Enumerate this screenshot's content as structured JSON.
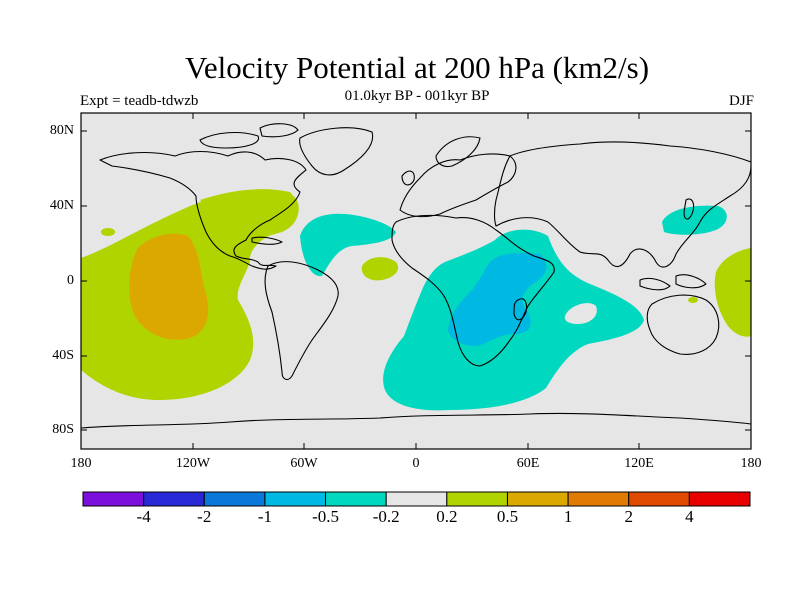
{
  "title": "Velocity Potential at 200 hPa (km2/s)",
  "subtitle": "01.0kyr BP - 001kyr BP",
  "experiment": "Expt = teadb-tdwzb",
  "season": "DJF",
  "map": {
    "projection": "cylindrical equidistant",
    "lon_range": [
      -180,
      180
    ],
    "lat_range": [
      -90,
      90
    ],
    "lat_ticks": [
      "80N",
      "40N",
      "0",
      "40S",
      "80S"
    ],
    "lon_ticks": [
      "180",
      "120W",
      "60W",
      "0",
      "60E",
      "120E",
      "180"
    ],
    "background_color": "#e6e6e6",
    "coastline_color": "#000000"
  },
  "colorbar": {
    "colors": [
      "#7b0fdc",
      "#2828d6",
      "#0a78d8",
      "#00b9e3",
      "#00d8c0",
      "#e6e6e6",
      "#b0d400",
      "#dba800",
      "#e07a00",
      "#e04a00",
      "#e80000"
    ],
    "labels": [
      "-4",
      "-2",
      "-1",
      "-0.5",
      "-0.2",
      "0.2",
      "0.5",
      "1",
      "2",
      "4"
    ]
  },
  "anomaly_regions": [
    {
      "name": "east-pacific-positive",
      "level": 0.5
    },
    {
      "name": "east-pacific-core",
      "level": 1
    },
    {
      "name": "north-america-positive",
      "level": 0.5
    },
    {
      "name": "west-pacific-positive",
      "level": 0.5
    },
    {
      "name": "tropical-atlantic-positive",
      "level": 0.5
    },
    {
      "name": "north-atlantic-negative",
      "level": -0.2
    },
    {
      "name": "indian-ocean-negative",
      "level": -0.2
    },
    {
      "name": "east-africa-core",
      "level": -0.5
    },
    {
      "name": "japan-negative",
      "level": -0.2
    }
  ]
}
